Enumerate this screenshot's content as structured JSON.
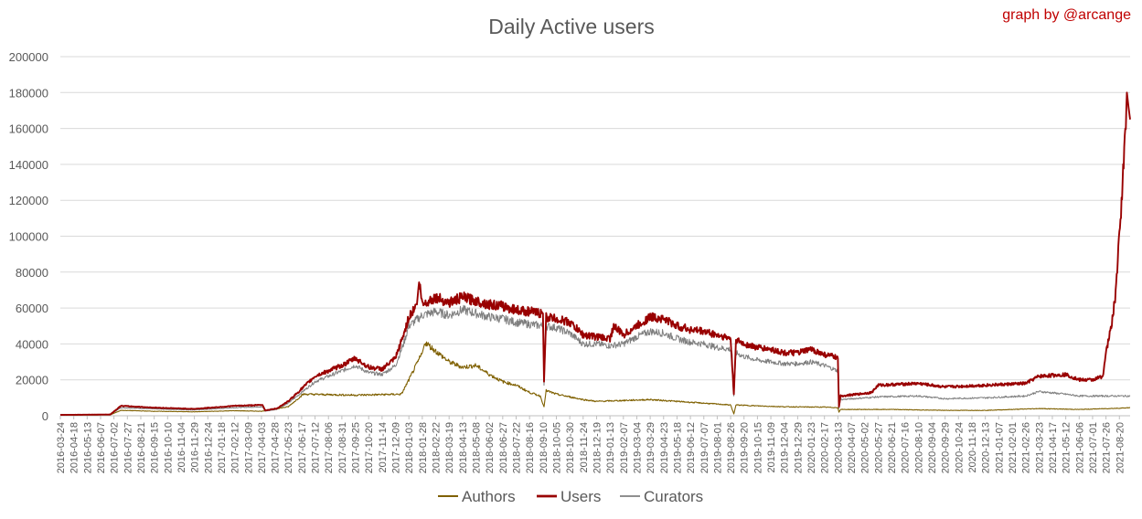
{
  "credit": "graph by @arcange",
  "colors": {
    "authors": "#7f6000",
    "users": "#990000",
    "curators": "#7f7f7f",
    "grid": "#d9d9d9",
    "text": "#595959",
    "credit": "#c00000"
  },
  "chart_data": {
    "type": "line",
    "title": "Daily Active users",
    "xlabel": "",
    "ylabel": "",
    "ylim": [
      0,
      200000
    ],
    "yticks": [
      "0",
      "20000",
      "40000",
      "60000",
      "80000",
      "100000",
      "120000",
      "140000",
      "160000",
      "180000",
      "200000"
    ],
    "grid": "horizontal",
    "legend_position": "bottom",
    "x_start": "2016-03-24",
    "x_end": "2021-09-09",
    "xticks": [
      "2016-03-24",
      "2016-04-18",
      "2016-05-13",
      "2016-06-07",
      "2016-07-02",
      "2016-07-27",
      "2016-08-21",
      "2016-09-15",
      "2016-10-10",
      "2016-11-04",
      "2016-11-29",
      "2016-12-24",
      "2017-01-18",
      "2017-02-12",
      "2017-03-09",
      "2017-04-03",
      "2017-04-28",
      "2017-05-23",
      "2017-06-17",
      "2017-07-12",
      "2017-08-06",
      "2017-08-31",
      "2017-09-25",
      "2017-10-20",
      "2017-11-14",
      "2017-12-09",
      "2018-01-03",
      "2018-01-28",
      "2018-02-22",
      "2018-03-19",
      "2018-04-13",
      "2018-05-08",
      "2018-06-02",
      "2018-06-27",
      "2018-07-22",
      "2018-08-16",
      "2018-09-10",
      "2018-10-05",
      "2018-10-30",
      "2018-11-24",
      "2018-12-19",
      "2019-01-13",
      "2019-02-07",
      "2019-03-04",
      "2019-03-29",
      "2019-04-23",
      "2019-05-18",
      "2019-06-12",
      "2019-07-07",
      "2019-08-01",
      "2019-08-26",
      "2019-09-20",
      "2019-10-15",
      "2019-11-09",
      "2019-12-04",
      "2019-12-29",
      "2020-01-23",
      "2020-02-17",
      "2020-03-13",
      "2020-04-07",
      "2020-05-02",
      "2020-05-27",
      "2020-06-21",
      "2020-07-16",
      "2020-08-10",
      "2020-09-04",
      "2020-09-29",
      "2020-10-24",
      "2020-11-18",
      "2020-12-13",
      "2021-01-07",
      "2021-02-01",
      "2021-02-26",
      "2021-03-23",
      "2021-04-17",
      "2021-05-12",
      "2021-06-06",
      "2021-07-01",
      "2021-07-26",
      "2021-08-20"
    ],
    "series": [
      {
        "name": "Authors",
        "points": [
          [
            "2016-03-24",
            300
          ],
          [
            "2016-06-25",
            500
          ],
          [
            "2016-07-15",
            3000
          ],
          [
            "2016-09-15",
            2500
          ],
          [
            "2016-11-29",
            2200
          ],
          [
            "2017-02-12",
            2800
          ],
          [
            "2017-04-03",
            2500
          ],
          [
            "2017-05-23",
            5000
          ],
          [
            "2017-06-20",
            12000
          ],
          [
            "2017-09-25",
            11500
          ],
          [
            "2017-12-20",
            12000
          ],
          [
            "2018-01-03",
            20000
          ],
          [
            "2018-01-28",
            35000
          ],
          [
            "2018-02-02",
            41000
          ],
          [
            "2018-02-22",
            36000
          ],
          [
            "2018-03-19",
            30000
          ],
          [
            "2018-04-13",
            27000
          ],
          [
            "2018-05-08",
            28000
          ],
          [
            "2018-06-02",
            23000
          ],
          [
            "2018-06-27",
            19000
          ],
          [
            "2018-07-22",
            17000
          ],
          [
            "2018-08-16",
            13000
          ],
          [
            "2018-09-05",
            11000
          ],
          [
            "2018-09-12",
            5000
          ],
          [
            "2018-09-16",
            14000
          ],
          [
            "2018-10-05",
            12000
          ],
          [
            "2018-11-24",
            9000
          ],
          [
            "2018-12-19",
            8000
          ],
          [
            "2019-02-07",
            8500
          ],
          [
            "2019-03-29",
            9000
          ],
          [
            "2019-05-18",
            8000
          ],
          [
            "2019-07-07",
            7000
          ],
          [
            "2019-08-26",
            6000
          ],
          [
            "2019-09-01",
            1000
          ],
          [
            "2019-09-05",
            6000
          ],
          [
            "2019-10-15",
            5500
          ],
          [
            "2019-12-04",
            5000
          ],
          [
            "2020-02-17",
            4800
          ],
          [
            "2020-03-13",
            4500
          ],
          [
            "2020-03-15",
            2000
          ],
          [
            "2020-03-18",
            3500
          ],
          [
            "2020-06-21",
            3500
          ],
          [
            "2020-09-29",
            3000
          ],
          [
            "2020-12-13",
            3000
          ],
          [
            "2021-03-23",
            4000
          ],
          [
            "2021-06-06",
            3500
          ],
          [
            "2021-08-20",
            4200
          ],
          [
            "2021-09-09",
            4500
          ]
        ]
      },
      {
        "name": "Users",
        "points": [
          [
            "2016-03-24",
            500
          ],
          [
            "2016-06-25",
            700
          ],
          [
            "2016-07-15",
            5500
          ],
          [
            "2016-09-15",
            4500
          ],
          [
            "2016-11-29",
            3800
          ],
          [
            "2017-02-12",
            5500
          ],
          [
            "2017-04-05",
            6000
          ],
          [
            "2017-04-10",
            3000
          ],
          [
            "2017-05-01",
            4000
          ],
          [
            "2017-05-23",
            8000
          ],
          [
            "2017-06-17",
            15000
          ],
          [
            "2017-07-12",
            22000
          ],
          [
            "2017-08-06",
            25000
          ],
          [
            "2017-08-31",
            28000
          ],
          [
            "2017-09-25",
            32000
          ],
          [
            "2017-10-20",
            27000
          ],
          [
            "2017-11-14",
            26000
          ],
          [
            "2017-12-09",
            32000
          ],
          [
            "2017-12-24",
            45000
          ],
          [
            "2018-01-03",
            55000
          ],
          [
            "2018-01-18",
            62000
          ],
          [
            "2018-01-22",
            75000
          ],
          [
            "2018-01-28",
            62000
          ],
          [
            "2018-02-22",
            66000
          ],
          [
            "2018-03-19",
            63000
          ],
          [
            "2018-04-13",
            66000
          ],
          [
            "2018-05-08",
            64000
          ],
          [
            "2018-06-02",
            62000
          ],
          [
            "2018-06-27",
            61000
          ],
          [
            "2018-07-22",
            59000
          ],
          [
            "2018-08-16",
            58000
          ],
          [
            "2018-09-10",
            57000
          ],
          [
            "2018-09-12",
            19000
          ],
          [
            "2018-09-16",
            55000
          ],
          [
            "2018-10-05",
            54000
          ],
          [
            "2018-10-30",
            52000
          ],
          [
            "2018-11-24",
            45000
          ],
          [
            "2018-12-19",
            44000
          ],
          [
            "2019-01-13",
            43000
          ],
          [
            "2019-01-20",
            50000
          ],
          [
            "2019-02-07",
            45000
          ],
          [
            "2019-03-04",
            50000
          ],
          [
            "2019-03-29",
            55000
          ],
          [
            "2019-04-23",
            54000
          ],
          [
            "2019-05-18",
            50000
          ],
          [
            "2019-06-12",
            48000
          ],
          [
            "2019-07-07",
            47000
          ],
          [
            "2019-08-01",
            45000
          ],
          [
            "2019-08-26",
            43000
          ],
          [
            "2019-09-01",
            12000
          ],
          [
            "2019-09-05",
            42000
          ],
          [
            "2019-09-20",
            40000
          ],
          [
            "2019-10-15",
            38000
          ],
          [
            "2019-11-09",
            37000
          ],
          [
            "2019-12-04",
            35000
          ],
          [
            "2019-12-29",
            35000
          ],
          [
            "2020-01-23",
            37000
          ],
          [
            "2020-02-17",
            34000
          ],
          [
            "2020-03-05",
            33000
          ],
          [
            "2020-03-13",
            32000
          ],
          [
            "2020-03-15",
            5000
          ],
          [
            "2020-03-18",
            11000
          ],
          [
            "2020-04-20",
            12000
          ],
          [
            "2020-05-15",
            13000
          ],
          [
            "2020-05-27",
            17000
          ],
          [
            "2020-08-10",
            18000
          ],
          [
            "2020-09-29",
            16000
          ],
          [
            "2020-12-13",
            17000
          ],
          [
            "2021-02-26",
            18000
          ],
          [
            "2021-03-23",
            22000
          ],
          [
            "2021-05-12",
            23000
          ],
          [
            "2021-06-06",
            20000
          ],
          [
            "2021-07-01",
            20000
          ],
          [
            "2021-07-20",
            22000
          ],
          [
            "2021-07-26",
            35000
          ],
          [
            "2021-08-05",
            50000
          ],
          [
            "2021-08-12",
            65000
          ],
          [
            "2021-08-20",
            100000
          ],
          [
            "2021-08-28",
            140000
          ],
          [
            "2021-09-03",
            180000
          ],
          [
            "2021-09-06",
            172000
          ],
          [
            "2021-09-09",
            165000
          ]
        ]
      },
      {
        "name": "Curators",
        "points": [
          [
            "2016-03-24",
            400
          ],
          [
            "2016-06-25",
            600
          ],
          [
            "2016-07-15",
            4500
          ],
          [
            "2016-09-15",
            3800
          ],
          [
            "2016-11-29",
            3200
          ],
          [
            "2017-02-12",
            4500
          ],
          [
            "2017-04-05",
            5000
          ],
          [
            "2017-04-10",
            2500
          ],
          [
            "2017-05-01",
            3500
          ],
          [
            "2017-05-23",
            7000
          ],
          [
            "2017-06-17",
            13000
          ],
          [
            "2017-07-12",
            19000
          ],
          [
            "2017-08-06",
            22000
          ],
          [
            "2017-08-31",
            25000
          ],
          [
            "2017-09-25",
            28000
          ],
          [
            "2017-10-20",
            24000
          ],
          [
            "2017-11-14",
            23000
          ],
          [
            "2017-12-09",
            28000
          ],
          [
            "2017-12-24",
            40000
          ],
          [
            "2018-01-03",
            50000
          ],
          [
            "2018-01-28",
            56000
          ],
          [
            "2018-02-22",
            58000
          ],
          [
            "2018-03-19",
            56000
          ],
          [
            "2018-04-13",
            59000
          ],
          [
            "2018-05-08",
            57000
          ],
          [
            "2018-06-02",
            55000
          ],
          [
            "2018-06-27",
            54000
          ],
          [
            "2018-07-22",
            52000
          ],
          [
            "2018-08-16",
            51000
          ],
          [
            "2018-09-10",
            50000
          ],
          [
            "2018-09-12",
            17000
          ],
          [
            "2018-09-16",
            50000
          ],
          [
            "2018-10-05",
            49000
          ],
          [
            "2018-10-30",
            46000
          ],
          [
            "2018-11-24",
            40000
          ],
          [
            "2018-12-19",
            40000
          ],
          [
            "2019-01-13",
            39000
          ],
          [
            "2019-02-07",
            40000
          ],
          [
            "2019-03-04",
            44000
          ],
          [
            "2019-03-29",
            47000
          ],
          [
            "2019-04-23",
            46000
          ],
          [
            "2019-05-18",
            43000
          ],
          [
            "2019-06-12",
            41000
          ],
          [
            "2019-07-07",
            40000
          ],
          [
            "2019-08-01",
            38000
          ],
          [
            "2019-08-26",
            37000
          ],
          [
            "2019-09-01",
            11000
          ],
          [
            "2019-09-05",
            35000
          ],
          [
            "2019-09-20",
            33000
          ],
          [
            "2019-10-15",
            31000
          ],
          [
            "2019-11-09",
            30000
          ],
          [
            "2019-12-04",
            29000
          ],
          [
            "2019-12-29",
            29000
          ],
          [
            "2020-01-23",
            30000
          ],
          [
            "2020-02-17",
            28000
          ],
          [
            "2020-03-05",
            26000
          ],
          [
            "2020-03-13",
            25000
          ],
          [
            "2020-03-15",
            4000
          ],
          [
            "2020-03-18",
            9000
          ],
          [
            "2020-05-27",
            10500
          ],
          [
            "2020-08-10",
            11000
          ],
          [
            "2020-09-29",
            9500
          ],
          [
            "2020-12-13",
            10000
          ],
          [
            "2021-02-26",
            11000
          ],
          [
            "2021-03-23",
            13500
          ],
          [
            "2021-05-12",
            12000
          ],
          [
            "2021-06-06",
            11000
          ],
          [
            "2021-08-20",
            11000
          ],
          [
            "2021-09-09",
            11000
          ]
        ]
      }
    ]
  }
}
